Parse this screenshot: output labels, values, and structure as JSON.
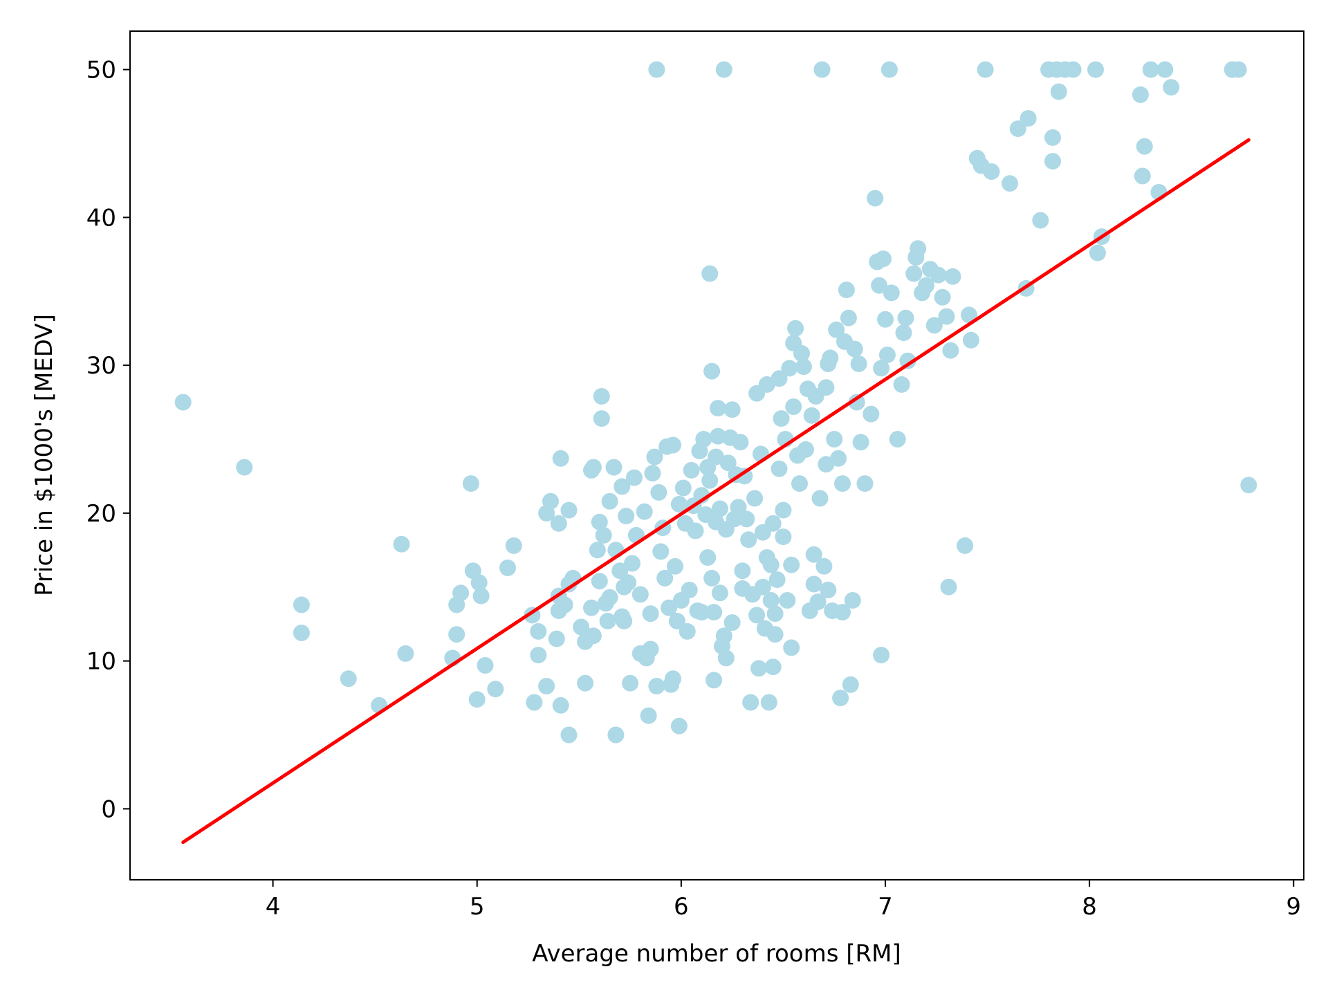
{
  "chart_data": {
    "type": "scatter",
    "title": "",
    "xlabel": "Average number of rooms [RM]",
    "ylabel": "Price in $1000's [MEDV]",
    "xlim": [
      3.3,
      9.05
    ],
    "ylim": [
      -4.8,
      52.6
    ],
    "xticks": [
      4,
      5,
      6,
      7,
      8,
      9
    ],
    "yticks": [
      0,
      10,
      20,
      30,
      40,
      50
    ],
    "grid": false,
    "legend": "none",
    "colors": {
      "points": "#add8e6",
      "fit_line": "#ff0000",
      "axes": "#000000"
    },
    "series": [
      {
        "kind": "scatter",
        "points": [
          [
            3.56,
            27.5
          ],
          [
            3.86,
            23.1
          ],
          [
            4.14,
            13.8
          ],
          [
            4.14,
            11.9
          ],
          [
            4.37,
            8.8
          ],
          [
            4.52,
            7.0
          ],
          [
            4.63,
            17.9
          ],
          [
            4.65,
            10.5
          ],
          [
            4.88,
            10.2
          ],
          [
            4.9,
            13.8
          ],
          [
            4.9,
            11.8
          ],
          [
            4.92,
            14.6
          ],
          [
            4.97,
            22.0
          ],
          [
            4.98,
            16.1
          ],
          [
            5.0,
            7.4
          ],
          [
            5.01,
            15.3
          ],
          [
            5.02,
            14.4
          ],
          [
            5.04,
            9.7
          ],
          [
            5.09,
            8.1
          ],
          [
            5.15,
            16.3
          ],
          [
            5.18,
            17.8
          ],
          [
            5.27,
            13.1
          ],
          [
            5.28,
            7.2
          ],
          [
            5.3,
            12.0
          ],
          [
            5.3,
            10.4
          ],
          [
            5.34,
            20.0
          ],
          [
            5.34,
            8.3
          ],
          [
            5.36,
            20.8
          ],
          [
            5.39,
            11.5
          ],
          [
            5.4,
            14.4
          ],
          [
            5.4,
            19.3
          ],
          [
            5.4,
            13.4
          ],
          [
            5.41,
            23.7
          ],
          [
            5.41,
            7.0
          ],
          [
            5.43,
            13.8
          ],
          [
            5.45,
            5.0
          ],
          [
            5.45,
            15.2
          ],
          [
            5.45,
            20.2
          ],
          [
            5.47,
            15.6
          ],
          [
            5.51,
            12.3
          ],
          [
            5.53,
            8.5
          ],
          [
            5.53,
            11.3
          ],
          [
            5.56,
            13.6
          ],
          [
            5.56,
            22.9
          ],
          [
            5.57,
            11.7
          ],
          [
            5.57,
            23.1
          ],
          [
            5.59,
            17.5
          ],
          [
            5.6,
            15.4
          ],
          [
            5.6,
            19.4
          ],
          [
            5.61,
            27.9
          ],
          [
            5.61,
            26.4
          ],
          [
            5.62,
            18.5
          ],
          [
            5.63,
            13.9
          ],
          [
            5.64,
            12.7
          ],
          [
            5.65,
            14.3
          ],
          [
            5.65,
            20.8
          ],
          [
            5.67,
            23.1
          ],
          [
            5.68,
            5.0
          ],
          [
            5.68,
            17.5
          ],
          [
            5.7,
            16.1
          ],
          [
            5.71,
            13.0
          ],
          [
            5.71,
            21.8
          ],
          [
            5.72,
            12.7
          ],
          [
            5.72,
            15.0
          ],
          [
            5.73,
            19.8
          ],
          [
            5.74,
            15.3
          ],
          [
            5.75,
            8.5
          ],
          [
            5.76,
            16.6
          ],
          [
            5.77,
            22.4
          ],
          [
            5.78,
            18.5
          ],
          [
            5.8,
            14.5
          ],
          [
            5.8,
            10.5
          ],
          [
            5.82,
            20.1
          ],
          [
            5.83,
            10.2
          ],
          [
            5.84,
            6.3
          ],
          [
            5.85,
            10.8
          ],
          [
            5.85,
            13.2
          ],
          [
            5.86,
            22.7
          ],
          [
            5.87,
            23.8
          ],
          [
            5.88,
            50.0
          ],
          [
            5.88,
            8.3
          ],
          [
            5.89,
            21.4
          ],
          [
            5.9,
            17.4
          ],
          [
            5.91,
            19.0
          ],
          [
            5.92,
            15.6
          ],
          [
            5.93,
            24.5
          ],
          [
            5.94,
            13.6
          ],
          [
            5.95,
            8.4
          ],
          [
            5.96,
            8.8
          ],
          [
            5.96,
            24.6
          ],
          [
            5.97,
            16.4
          ],
          [
            5.98,
            12.7
          ],
          [
            5.99,
            5.6
          ],
          [
            5.99,
            20.6
          ],
          [
            6.0,
            14.1
          ],
          [
            6.01,
            21.7
          ],
          [
            6.02,
            19.3
          ],
          [
            6.03,
            12.0
          ],
          [
            6.04,
            14.8
          ],
          [
            6.05,
            22.9
          ],
          [
            6.06,
            20.5
          ],
          [
            6.07,
            18.8
          ],
          [
            6.08,
            13.4
          ],
          [
            6.09,
            24.2
          ],
          [
            6.1,
            21.2
          ],
          [
            6.1,
            13.3
          ],
          [
            6.11,
            25.0
          ],
          [
            6.12,
            19.9
          ],
          [
            6.13,
            23.1
          ],
          [
            6.13,
            17.0
          ],
          [
            6.14,
            22.2
          ],
          [
            6.14,
            36.2
          ],
          [
            6.15,
            15.6
          ],
          [
            6.15,
            29.6
          ],
          [
            6.16,
            8.7
          ],
          [
            6.16,
            13.3
          ],
          [
            6.17,
            23.8
          ],
          [
            6.17,
            19.4
          ],
          [
            6.18,
            27.1
          ],
          [
            6.18,
            25.2
          ],
          [
            6.19,
            14.6
          ],
          [
            6.19,
            20.3
          ],
          [
            6.2,
            11.0
          ],
          [
            6.21,
            11.7
          ],
          [
            6.21,
            50.0
          ],
          [
            6.22,
            10.2
          ],
          [
            6.22,
            18.9
          ],
          [
            6.23,
            23.4
          ],
          [
            6.24,
            25.1
          ],
          [
            6.25,
            12.6
          ],
          [
            6.25,
            27.0
          ],
          [
            6.26,
            19.6
          ],
          [
            6.27,
            22.6
          ],
          [
            6.28,
            20.4
          ],
          [
            6.29,
            24.8
          ],
          [
            6.3,
            16.1
          ],
          [
            6.3,
            14.9
          ],
          [
            6.31,
            22.5
          ],
          [
            6.32,
            19.6
          ],
          [
            6.33,
            18.2
          ],
          [
            6.34,
            7.2
          ],
          [
            6.35,
            14.5
          ],
          [
            6.36,
            21.0
          ],
          [
            6.37,
            28.1
          ],
          [
            6.37,
            13.1
          ],
          [
            6.38,
            9.5
          ],
          [
            6.39,
            24.0
          ],
          [
            6.4,
            15.0
          ],
          [
            6.4,
            18.7
          ],
          [
            6.41,
            12.2
          ],
          [
            6.42,
            28.7
          ],
          [
            6.42,
            17.0
          ],
          [
            6.43,
            7.2
          ],
          [
            6.44,
            14.1
          ],
          [
            6.44,
            16.5
          ],
          [
            6.45,
            9.6
          ],
          [
            6.45,
            19.3
          ],
          [
            6.46,
            13.2
          ],
          [
            6.46,
            11.8
          ],
          [
            6.47,
            15.5
          ],
          [
            6.48,
            29.1
          ],
          [
            6.48,
            23.0
          ],
          [
            6.49,
            26.4
          ],
          [
            6.5,
            18.4
          ],
          [
            6.5,
            20.2
          ],
          [
            6.51,
            25.0
          ],
          [
            6.52,
            14.1
          ],
          [
            6.53,
            29.8
          ],
          [
            6.54,
            10.9
          ],
          [
            6.54,
            16.5
          ],
          [
            6.55,
            31.5
          ],
          [
            6.55,
            27.2
          ],
          [
            6.56,
            32.5
          ],
          [
            6.57,
            23.9
          ],
          [
            6.58,
            22.0
          ],
          [
            6.59,
            30.8
          ],
          [
            6.6,
            29.9
          ],
          [
            6.61,
            24.3
          ],
          [
            6.62,
            28.4
          ],
          [
            6.63,
            13.4
          ],
          [
            6.64,
            26.6
          ],
          [
            6.65,
            15.2
          ],
          [
            6.65,
            17.2
          ],
          [
            6.66,
            27.9
          ],
          [
            6.67,
            14.0
          ],
          [
            6.68,
            21.0
          ],
          [
            6.69,
            50.0
          ],
          [
            6.7,
            16.4
          ],
          [
            6.71,
            23.3
          ],
          [
            6.71,
            28.5
          ],
          [
            6.72,
            30.1
          ],
          [
            6.72,
            14.8
          ],
          [
            6.73,
            30.5
          ],
          [
            6.74,
            13.4
          ],
          [
            6.75,
            25.0
          ],
          [
            6.76,
            32.4
          ],
          [
            6.77,
            23.7
          ],
          [
            6.78,
            7.5
          ],
          [
            6.79,
            22.0
          ],
          [
            6.79,
            13.3
          ],
          [
            6.8,
            31.6
          ],
          [
            6.81,
            35.1
          ],
          [
            6.82,
            33.2
          ],
          [
            6.83,
            8.4
          ],
          [
            6.84,
            14.1
          ],
          [
            6.85,
            31.1
          ],
          [
            6.86,
            27.5
          ],
          [
            6.87,
            30.1
          ],
          [
            6.88,
            24.8
          ],
          [
            6.9,
            22.0
          ],
          [
            6.93,
            26.7
          ],
          [
            6.95,
            41.3
          ],
          [
            6.96,
            37.0
          ],
          [
            6.97,
            35.4
          ],
          [
            6.98,
            29.8
          ],
          [
            6.98,
            10.4
          ],
          [
            6.99,
            37.2
          ],
          [
            7.0,
            33.1
          ],
          [
            7.01,
            30.7
          ],
          [
            7.02,
            50.0
          ],
          [
            7.03,
            34.9
          ],
          [
            7.06,
            25.0
          ],
          [
            7.08,
            28.7
          ],
          [
            7.09,
            32.2
          ],
          [
            7.1,
            33.2
          ],
          [
            7.11,
            30.3
          ],
          [
            7.14,
            36.2
          ],
          [
            7.15,
            37.3
          ],
          [
            7.16,
            37.9
          ],
          [
            7.18,
            34.9
          ],
          [
            7.2,
            35.4
          ],
          [
            7.22,
            36.5
          ],
          [
            7.24,
            32.7
          ],
          [
            7.26,
            36.1
          ],
          [
            7.28,
            34.6
          ],
          [
            7.3,
            33.3
          ],
          [
            7.32,
            31.0
          ],
          [
            7.33,
            36.0
          ],
          [
            7.39,
            17.8
          ],
          [
            7.41,
            33.4
          ],
          [
            7.42,
            31.7
          ],
          [
            7.45,
            44.0
          ],
          [
            7.47,
            43.5
          ],
          [
            7.49,
            50.0
          ],
          [
            7.52,
            43.1
          ],
          [
            7.61,
            42.3
          ],
          [
            7.65,
            46.0
          ],
          [
            7.69,
            35.2
          ],
          [
            7.7,
            46.7
          ],
          [
            7.76,
            39.8
          ],
          [
            7.8,
            50.0
          ],
          [
            7.82,
            45.4
          ],
          [
            7.82,
            43.8
          ],
          [
            7.84,
            50.0
          ],
          [
            7.85,
            48.5
          ],
          [
            7.88,
            50.0
          ],
          [
            7.92,
            50.0
          ],
          [
            8.03,
            50.0
          ],
          [
            8.04,
            37.6
          ],
          [
            8.06,
            38.7
          ],
          [
            8.25,
            48.3
          ],
          [
            8.26,
            42.8
          ],
          [
            8.27,
            44.8
          ],
          [
            8.3,
            50.0
          ],
          [
            8.34,
            41.7
          ],
          [
            8.37,
            50.0
          ],
          [
            8.4,
            48.8
          ],
          [
            8.7,
            50.0
          ],
          [
            8.73,
            50.0
          ],
          [
            8.78,
            21.9
          ],
          [
            7.31,
            15.0
          ]
        ]
      },
      {
        "kind": "line",
        "points": [
          [
            3.56,
            -2.26
          ],
          [
            8.78,
            45.24
          ]
        ]
      }
    ]
  }
}
